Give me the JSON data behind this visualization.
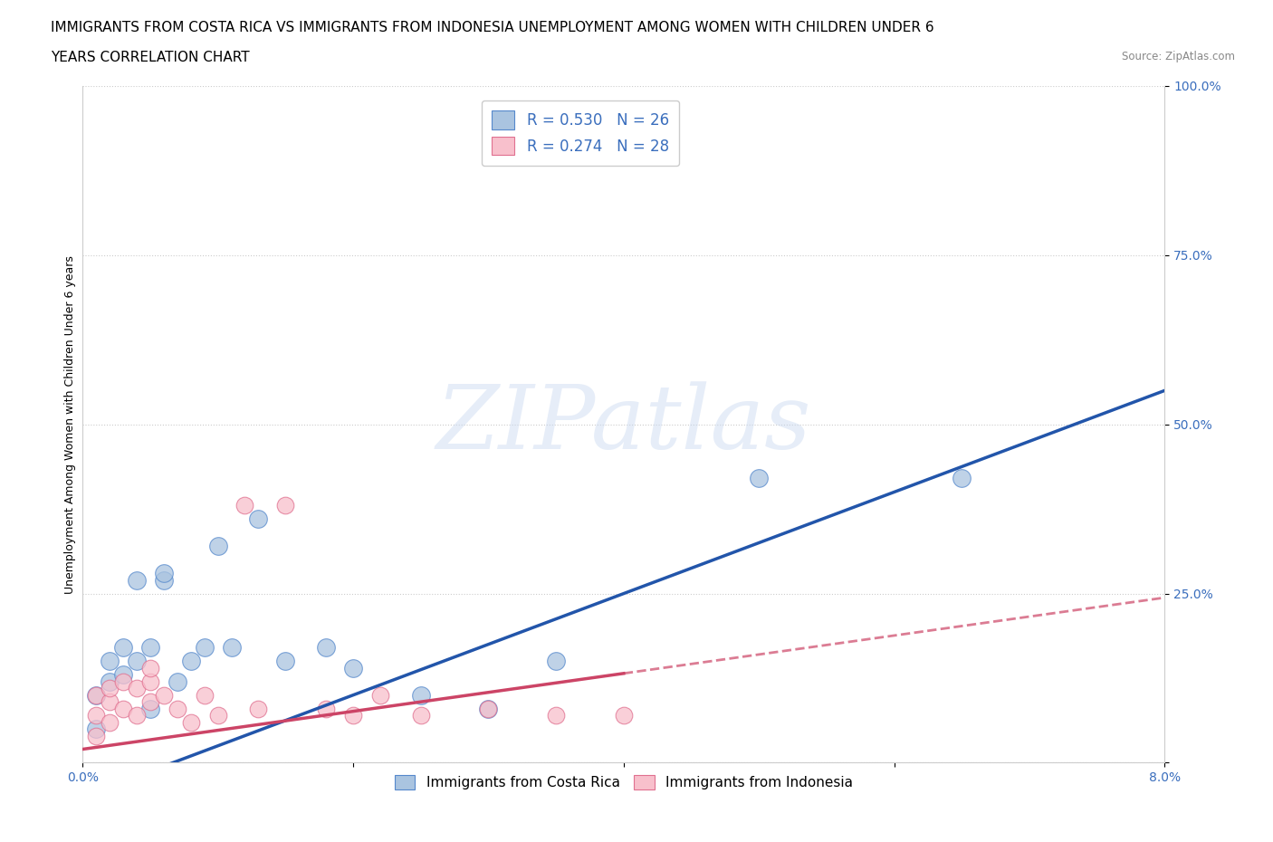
{
  "title_line1": "IMMIGRANTS FROM COSTA RICA VS IMMIGRANTS FROM INDONESIA UNEMPLOYMENT AMONG WOMEN WITH CHILDREN UNDER 6",
  "title_line2": "YEARS CORRELATION CHART",
  "source": "Source: ZipAtlas.com",
  "ylabel": "Unemployment Among Women with Children Under 6 years",
  "xlim": [
    0.0,
    0.08
  ],
  "ylim": [
    0.0,
    1.0
  ],
  "xtick_labels": [
    "0.0%",
    "",
    "",
    "",
    "8.0%"
  ],
  "ytick_labels": [
    "",
    "25.0%",
    "50.0%",
    "75.0%",
    "100.0%"
  ],
  "background_color": "#ffffff",
  "watermark_text": "ZIPatlas",
  "costa_rica": {
    "R": 0.53,
    "N": 26,
    "color": "#aac4e0",
    "edge_color": "#5588cc",
    "line_color": "#2255aa",
    "x": [
      0.001,
      0.001,
      0.002,
      0.002,
      0.003,
      0.003,
      0.004,
      0.004,
      0.005,
      0.005,
      0.006,
      0.006,
      0.007,
      0.008,
      0.009,
      0.01,
      0.011,
      0.013,
      0.015,
      0.018,
      0.02,
      0.025,
      0.03,
      0.035,
      0.05,
      0.065
    ],
    "y": [
      0.05,
      0.1,
      0.12,
      0.15,
      0.13,
      0.17,
      0.15,
      0.27,
      0.08,
      0.17,
      0.27,
      0.28,
      0.12,
      0.15,
      0.17,
      0.32,
      0.17,
      0.36,
      0.15,
      0.17,
      0.14,
      0.1,
      0.08,
      0.15,
      0.42,
      0.42
    ]
  },
  "indonesia": {
    "R": 0.274,
    "N": 28,
    "color": "#f8c0cc",
    "edge_color": "#e07090",
    "line_color": "#cc4466",
    "x": [
      0.001,
      0.001,
      0.001,
      0.002,
      0.002,
      0.002,
      0.003,
      0.003,
      0.004,
      0.004,
      0.005,
      0.005,
      0.005,
      0.006,
      0.007,
      0.008,
      0.009,
      0.01,
      0.012,
      0.013,
      0.015,
      0.018,
      0.02,
      0.022,
      0.025,
      0.03,
      0.035,
      0.04
    ],
    "y": [
      0.04,
      0.07,
      0.1,
      0.06,
      0.09,
      0.11,
      0.08,
      0.12,
      0.07,
      0.11,
      0.09,
      0.12,
      0.14,
      0.1,
      0.08,
      0.06,
      0.1,
      0.07,
      0.38,
      0.08,
      0.38,
      0.08,
      0.07,
      0.1,
      0.07,
      0.08,
      0.07,
      0.07
    ]
  },
  "legend_color": "#3a6ebd",
  "title_fontsize": 11,
  "axis_label_fontsize": 9,
  "tick_fontsize": 10
}
